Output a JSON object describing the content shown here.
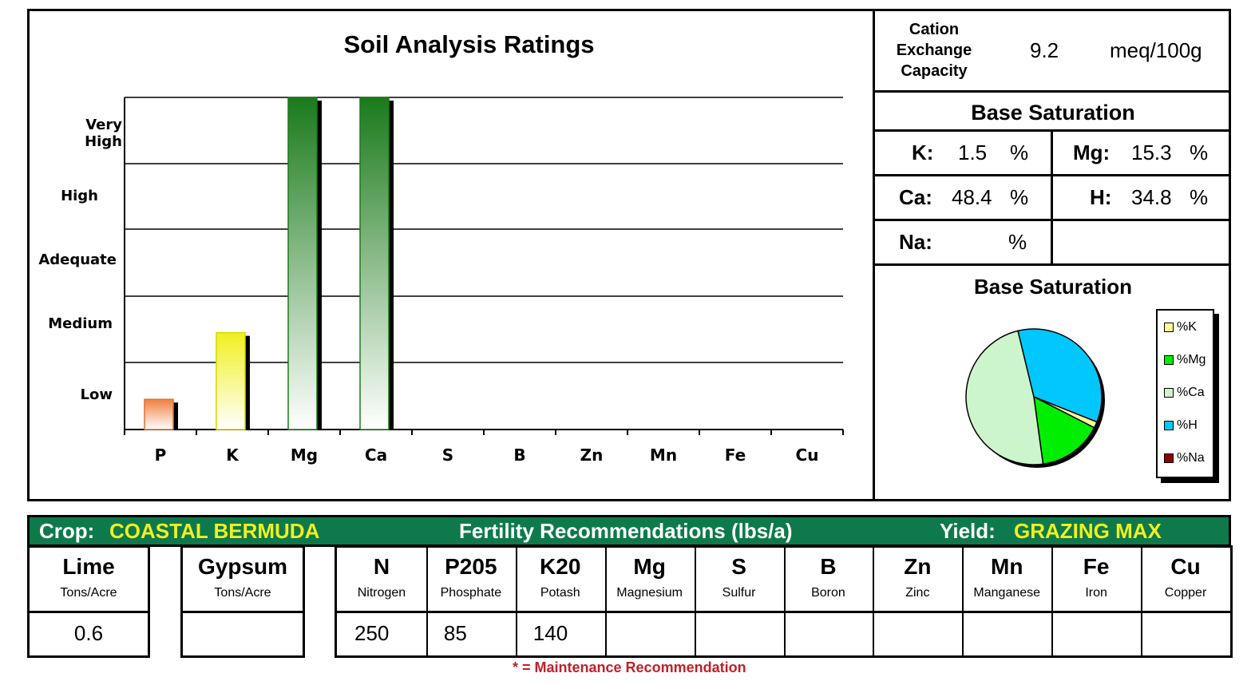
{
  "chart_data": {
    "type": "bar",
    "title": "Soil Analysis Ratings",
    "categories": [
      "P",
      "K",
      "Mg",
      "Ca",
      "S",
      "B",
      "Zn",
      "Mn",
      "Fe",
      "Cu"
    ],
    "rating_levels": [
      "Low",
      "Medium",
      "Adequate",
      "High",
      "Very High"
    ],
    "values": [
      0.45,
      1.45,
      5,
      5,
      null,
      null,
      null,
      null,
      null,
      null
    ],
    "ylim": [
      0,
      5
    ],
    "colors": {
      "P": "#f08040",
      "K": "#f0f020",
      "Mg": "#1a7a1a",
      "Ca": "#1a7a1a"
    },
    "grid": true
  },
  "cec": {
    "label_line1": "Cation",
    "label_line2": "Exchange",
    "label_line3": "Capacity",
    "value": "9.2",
    "unit": "meq/100g"
  },
  "base_saturation": {
    "heading": "Base Saturation",
    "K": {
      "label": "K:",
      "value": "1.5",
      "unit": "%"
    },
    "Mg": {
      "label": "Mg:",
      "value": "15.3",
      "unit": "%"
    },
    "Ca": {
      "label": "Ca:",
      "value": "48.4",
      "unit": "%"
    },
    "H": {
      "label": "H:",
      "value": "34.8",
      "unit": "%"
    },
    "Na": {
      "label": "Na:",
      "value": "",
      "unit": "%"
    }
  },
  "pie": {
    "heading": "Base Saturation",
    "slices": [
      {
        "name": "%K",
        "value": 1.5,
        "color": "#ffff99"
      },
      {
        "name": "%Mg",
        "value": 15.3,
        "color": "#00ee00"
      },
      {
        "name": "%Ca",
        "value": 48.4,
        "color": "#ccf5cc"
      },
      {
        "name": "%H",
        "value": 34.8,
        "color": "#00c8ff"
      },
      {
        "name": "%Na",
        "value": 0,
        "color": "#8b0000"
      }
    ]
  },
  "fertility": {
    "crop_label": "Crop:",
    "crop": "COASTAL BERMUDA",
    "title": "Fertility Recommendations (lbs/a)",
    "yield_label": "Yield:",
    "yield": "GRAZING MAX",
    "accent": "#f0f020",
    "lime": {
      "title": "Lime",
      "sub": "Tons/Acre",
      "value": "0.6"
    },
    "gypsum": {
      "title": "Gypsum",
      "sub": "Tons/Acre",
      "value": ""
    },
    "nutrients": [
      {
        "title": "N",
        "sub": "Nitrogen",
        "value": "250"
      },
      {
        "title": "P205",
        "sub": "Phosphate",
        "value": "85"
      },
      {
        "title": "K20",
        "sub": "Potash",
        "value": "140"
      },
      {
        "title": "Mg",
        "sub": "Magnesium",
        "value": ""
      },
      {
        "title": "S",
        "sub": "Sulfur",
        "value": ""
      },
      {
        "title": "B",
        "sub": "Boron",
        "value": ""
      },
      {
        "title": "Zn",
        "sub": "Zinc",
        "value": ""
      },
      {
        "title": "Mn",
        "sub": "Manganese",
        "value": ""
      },
      {
        "title": "Fe",
        "sub": "Iron",
        "value": ""
      },
      {
        "title": "Cu",
        "sub": "Copper",
        "value": ""
      }
    ],
    "footnote": "* = Maintenance Recommendation"
  }
}
